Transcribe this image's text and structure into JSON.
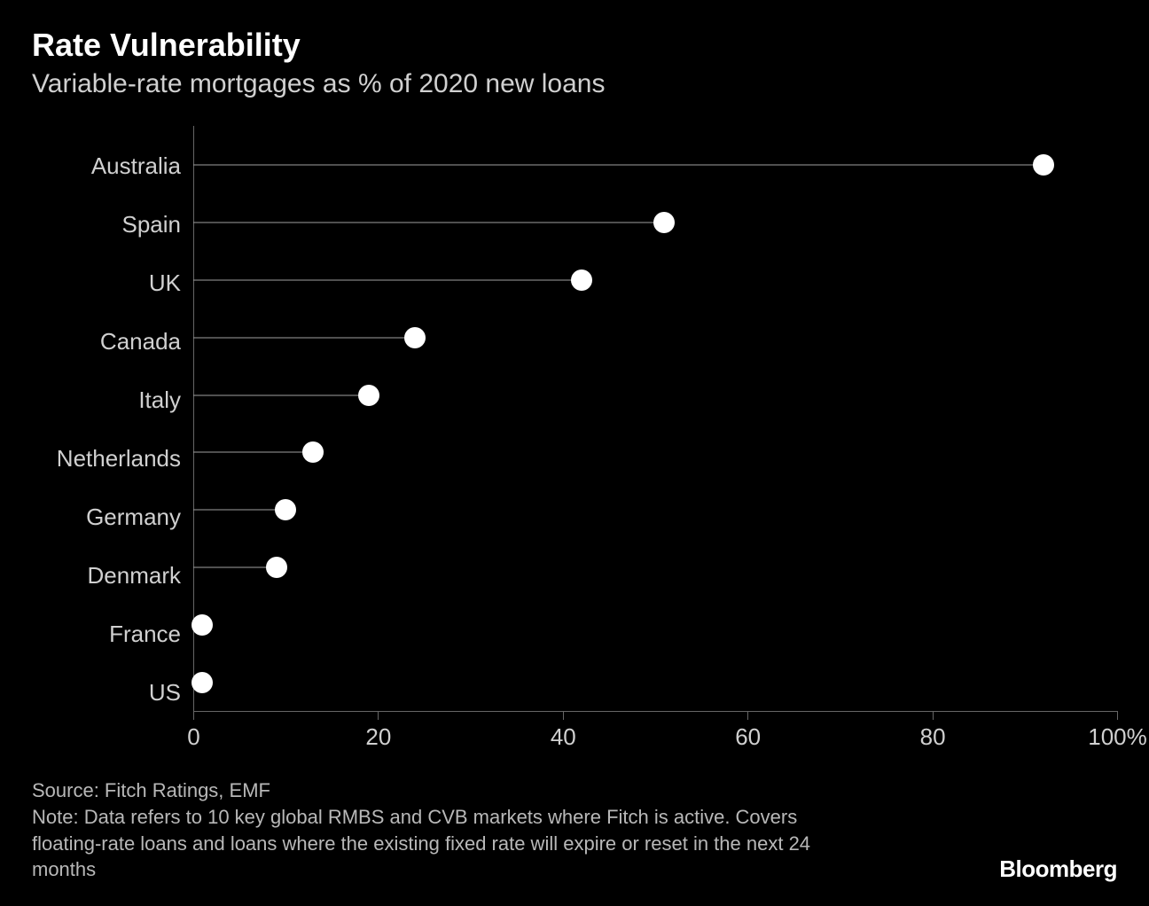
{
  "title": "Rate Vulnerability",
  "subtitle": "Variable-rate mortgages as % of 2020 new loans",
  "chart": {
    "type": "lollipop",
    "background_color": "#000000",
    "text_color": "#d0d0d0",
    "title_color": "#ffffff",
    "title_fontsize": 36,
    "subtitle_fontsize": 30,
    "label_fontsize": 26,
    "axis_color": "#666666",
    "stem_color": "#a0a0a0",
    "stem_width": 1,
    "dot_color": "#ffffff",
    "dot_radius": 12,
    "xlim": [
      0,
      100
    ],
    "xtick_step": 20,
    "xticks": [
      0,
      20,
      40,
      60,
      80,
      100
    ],
    "xtick_suffix_last": "%",
    "categories": [
      "Australia",
      "Spain",
      "UK",
      "Canada",
      "Italy",
      "Netherlands",
      "Germany",
      "Denmark",
      "France",
      "US"
    ],
    "values": [
      92,
      51,
      42,
      24,
      19,
      13,
      10,
      9,
      1,
      1
    ]
  },
  "source": "Source: Fitch Ratings, EMF",
  "note": "Note: Data refers to 10 key global RMBS and CVB markets where Fitch is active. Covers floating-rate loans and loans where the existing fixed rate will expire or reset in the next 24 months",
  "brand": "Bloomberg"
}
